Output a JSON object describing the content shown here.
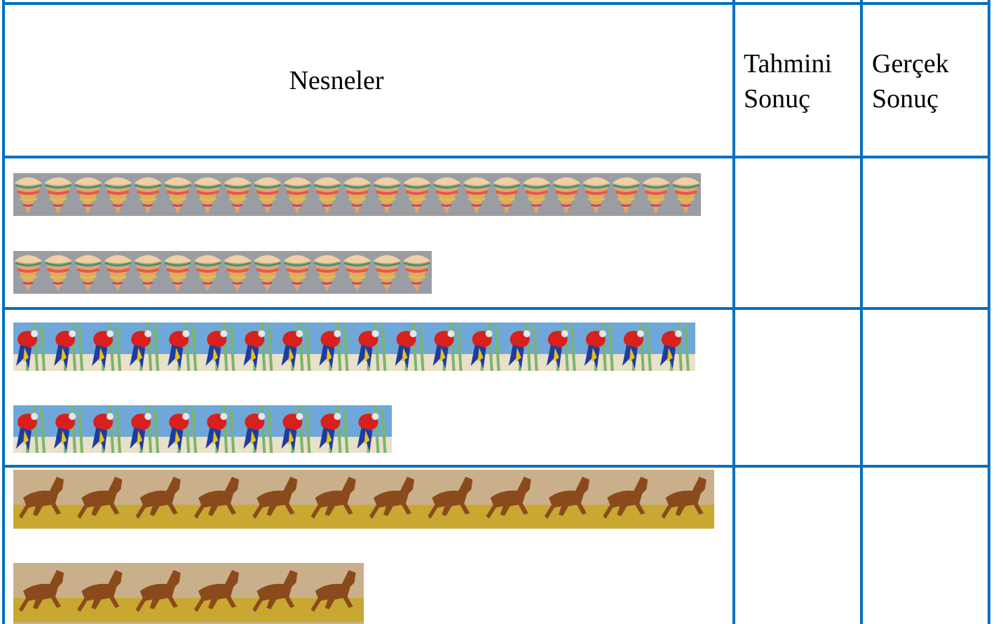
{
  "header": {
    "objects": "Nesneler",
    "estimate": "Tahmini Sonuç",
    "actual": "Gerçek Sonuç"
  }
}
